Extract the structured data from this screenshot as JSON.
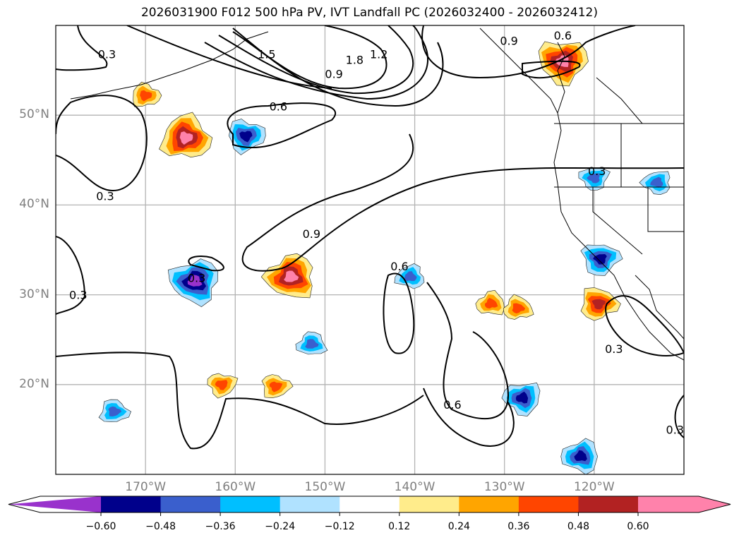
{
  "title": "2026031900 F012 500 hPa PV, IVT Landfall PC (2026032400 - 2026032412)",
  "chart_data": {
    "type": "map",
    "title": "2026031900 F012 500 hPa PV, IVT Landfall PC (2026032400 - 2026032412)",
    "projection": "PlateCarree",
    "extent": {
      "lon_min": -180,
      "lon_max": -110,
      "lat_min": 10,
      "lat_max": 60
    },
    "grid": true,
    "lat_ticks": [
      {
        "value": 50,
        "label": "50°N"
      },
      {
        "value": 40,
        "label": "40°N"
      },
      {
        "value": 30,
        "label": "30°N"
      },
      {
        "value": 20,
        "label": "20°N"
      }
    ],
    "lon_ticks": [
      {
        "value": -170,
        "label": "170°W"
      },
      {
        "value": -160,
        "label": "160°W"
      },
      {
        "value": -150,
        "label": "150°W"
      },
      {
        "value": -140,
        "label": "140°W"
      },
      {
        "value": -130,
        "label": "130°W"
      },
      {
        "value": -120,
        "label": "120°W"
      }
    ],
    "contour_field": "500 hPa PV",
    "contour_levels": [
      0.3,
      0.6,
      0.9,
      1.2,
      1.5,
      1.8
    ],
    "contour_labels": [
      {
        "text": "0.3",
        "lon": -174.3,
        "lat": 56.8
      },
      {
        "text": "0.3",
        "lon": -174.5,
        "lat": 41.0
      },
      {
        "text": "0.3",
        "lon": -177.5,
        "lat": 30.0
      },
      {
        "text": "0.6",
        "lon": -155.2,
        "lat": 51.0
      },
      {
        "text": "0.9",
        "lon": -149.0,
        "lat": 54.6
      },
      {
        "text": "1.5",
        "lon": -156.5,
        "lat": 56.8
      },
      {
        "text": "1.8",
        "lon": -146.7,
        "lat": 56.2
      },
      {
        "text": "1.2",
        "lon": -144.0,
        "lat": 56.8
      },
      {
        "text": "0.9",
        "lon": -129.5,
        "lat": 58.3
      },
      {
        "text": "0.6",
        "lon": -123.5,
        "lat": 58.9
      },
      {
        "text": "0.3",
        "lon": -164.3,
        "lat": 31.9
      },
      {
        "text": "0.9",
        "lon": -151.5,
        "lat": 36.8
      },
      {
        "text": "0.6",
        "lon": -141.7,
        "lat": 33.2
      },
      {
        "text": "0.3",
        "lon": -119.7,
        "lat": 43.8
      },
      {
        "text": "0.6",
        "lon": -135.8,
        "lat": 17.8
      },
      {
        "text": "0.3",
        "lon": -117.8,
        "lat": 24.0
      },
      {
        "text": "0.3",
        "lon": -111.0,
        "lat": 15.0
      }
    ],
    "fill_field": "IVT Landfall PC",
    "colorbar": {
      "ticks": [
        -0.6,
        -0.48,
        -0.36,
        -0.24,
        -0.12,
        0.12,
        0.24,
        0.36,
        0.48,
        0.6
      ],
      "tick_labels": [
        "−0.60",
        "−0.48",
        "−0.36",
        "−0.24",
        "−0.12",
        "0.12",
        "0.24",
        "0.36",
        "0.48",
        "0.60"
      ],
      "colors": [
        "#9932cc",
        "#00008b",
        "#3a5fcd",
        "#00bfff",
        "#b0e2ff",
        "#ffffff",
        "#ffec8b",
        "#ffa500",
        "#ff4500",
        "#b22222",
        "#ff82ab"
      ],
      "extend": "both",
      "orientation": "horizontal"
    },
    "anomaly_blobs": [
      {
        "sign": "positive",
        "peak": 0.6,
        "lon": -165.5,
        "lat": 47.5
      },
      {
        "sign": "positive",
        "peak": 0.36,
        "lon": -170.0,
        "lat": 52.2
      },
      {
        "sign": "negative",
        "peak": -0.48,
        "lon": -158.8,
        "lat": 47.7
      },
      {
        "sign": "positive",
        "peak": 0.6,
        "lon": -123.5,
        "lat": 56.0
      },
      {
        "sign": "negative",
        "peak": -0.6,
        "lon": -164.5,
        "lat": 31.5
      },
      {
        "sign": "positive",
        "peak": 0.6,
        "lon": -153.8,
        "lat": 32.0
      },
      {
        "sign": "negative",
        "peak": -0.36,
        "lon": -151.5,
        "lat": 24.5
      },
      {
        "sign": "negative",
        "peak": -0.36,
        "lon": -173.5,
        "lat": 17.0
      },
      {
        "sign": "positive",
        "peak": 0.36,
        "lon": -155.5,
        "lat": 19.8
      },
      {
        "sign": "positive",
        "peak": 0.36,
        "lon": -161.5,
        "lat": 20.0
      },
      {
        "sign": "negative",
        "peak": -0.48,
        "lon": -128.0,
        "lat": 18.5
      },
      {
        "sign": "negative",
        "peak": -0.48,
        "lon": -121.5,
        "lat": 12.0
      },
      {
        "sign": "positive",
        "peak": 0.36,
        "lon": -131.5,
        "lat": 29.0
      },
      {
        "sign": "positive",
        "peak": 0.36,
        "lon": -128.5,
        "lat": 28.5
      },
      {
        "sign": "positive",
        "peak": 0.48,
        "lon": -119.5,
        "lat": 29.0
      },
      {
        "sign": "negative",
        "peak": -0.48,
        "lon": -119.3,
        "lat": 34.0
      },
      {
        "sign": "negative",
        "peak": -0.36,
        "lon": -120.0,
        "lat": 43.0
      },
      {
        "sign": "negative",
        "peak": -0.36,
        "lon": -113.0,
        "lat": 42.5
      },
      {
        "sign": "negative",
        "peak": -0.36,
        "lon": -140.5,
        "lat": 32.0
      }
    ]
  }
}
